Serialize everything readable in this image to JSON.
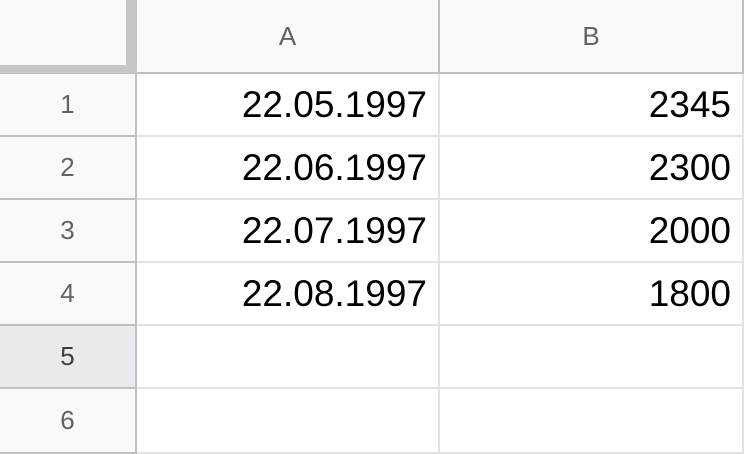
{
  "columns": [
    "A",
    "B"
  ],
  "rows": [
    {
      "number": "1",
      "cells": [
        "22.05.1997",
        "2345"
      ]
    },
    {
      "number": "2",
      "cells": [
        "22.06.1997",
        "2300"
      ]
    },
    {
      "number": "3",
      "cells": [
        "22.07.1997",
        "2000"
      ]
    },
    {
      "number": "4",
      "cells": [
        "22.08.1997",
        "1800"
      ]
    },
    {
      "number": "5",
      "cells": [
        "",
        ""
      ]
    },
    {
      "number": "6",
      "cells": [
        "",
        ""
      ]
    }
  ],
  "selected_row": "5",
  "colors": {
    "header_bg": "#f8f9fa",
    "header_text": "#5f6368",
    "selected_header_bg": "#e8eaed",
    "grid_line": "#e2e3e3",
    "frozen_bar": "#c4c7c5"
  }
}
